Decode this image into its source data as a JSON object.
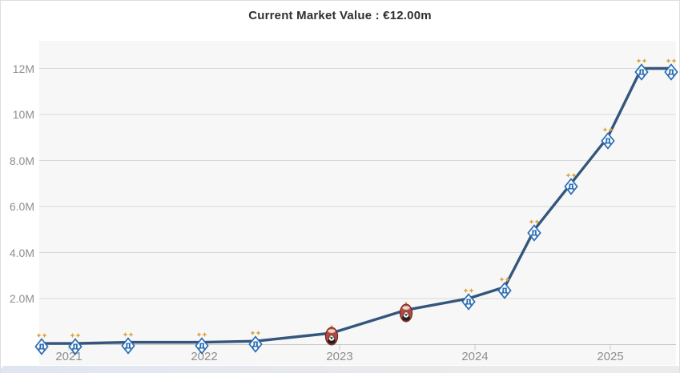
{
  "header": {
    "title": "Current Market Value : €12.00m"
  },
  "chart_data": {
    "type": "line",
    "title": "Current Market Value : €12.00m",
    "currency": "EUR",
    "unit": "millions",
    "grid": true,
    "legend": false,
    "x_ticks": [
      2021,
      2022,
      2023,
      2024,
      2025
    ],
    "y_ticks": [
      {
        "value": 2,
        "label": "2.0M"
      },
      {
        "value": 4,
        "label": "4.0M"
      },
      {
        "value": 6,
        "label": "6.0M"
      },
      {
        "value": 8,
        "label": "8.0M"
      },
      {
        "value": 10,
        "label": "10M"
      },
      {
        "value": 12,
        "label": "12M"
      }
    ],
    "xlim": [
      2020.78,
      2025.49
    ],
    "ylim": [
      0,
      13.2
    ],
    "series": [
      {
        "name": "Market value",
        "color": "#34567c",
        "points": [
          {
            "x": 2020.8,
            "value_m": 0.05,
            "club": "dynamo-kyiv"
          },
          {
            "x": 2021.05,
            "value_m": 0.05,
            "club": "dynamo-kyiv"
          },
          {
            "x": 2021.44,
            "value_m": 0.1,
            "club": "dynamo-kyiv"
          },
          {
            "x": 2021.98,
            "value_m": 0.1,
            "club": "dynamo-kyiv"
          },
          {
            "x": 2022.38,
            "value_m": 0.15,
            "club": "dynamo-kyiv"
          },
          {
            "x": 2022.94,
            "value_m": 0.5,
            "club": "zorya-luhansk"
          },
          {
            "x": 2023.49,
            "value_m": 1.5,
            "club": "zorya-luhansk"
          },
          {
            "x": 2023.95,
            "value_m": 2.0,
            "club": "dynamo-kyiv"
          },
          {
            "x": 2024.22,
            "value_m": 2.5,
            "club": "dynamo-kyiv"
          },
          {
            "x": 2024.44,
            "value_m": 5.0,
            "club": "dynamo-kyiv"
          },
          {
            "x": 2024.71,
            "value_m": 7.0,
            "club": "dynamo-kyiv"
          },
          {
            "x": 2024.98,
            "value_m": 9.0,
            "club": "dynamo-kyiv"
          },
          {
            "x": 2025.23,
            "value_m": 12.0,
            "club": "dynamo-kyiv"
          },
          {
            "x": 2025.45,
            "value_m": 12.0,
            "club": "dynamo-kyiv"
          }
        ]
      }
    ]
  },
  "colors": {
    "series_line": "#34567c",
    "plot_background": "#f7f7f7",
    "gridline": "#d8d8d8",
    "axis_line": "#c8c8c8",
    "axis_label": "#8e8e8e",
    "title_text": "#2f2f2f",
    "dynamo_blue": "#2a6cb3",
    "star_gold": "#dda43c",
    "zorya_red": "#b5473f"
  }
}
